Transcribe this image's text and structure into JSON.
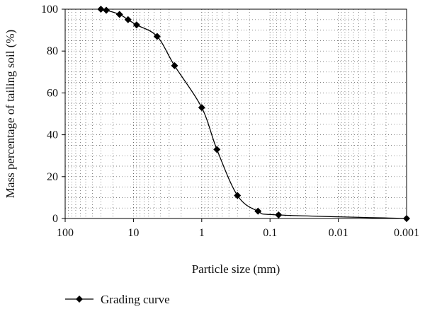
{
  "chart_data": {
    "type": "line",
    "title": "",
    "xlabel": "Particle size (mm)",
    "ylabel": "Mass percentage of tailing soil (%)",
    "x_scale": "log",
    "x_reversed": true,
    "xlim": [
      100,
      0.001
    ],
    "ylim": [
      0,
      100
    ],
    "x_ticks": [
      100,
      10,
      1,
      0.1,
      0.01,
      0.001
    ],
    "x_tick_labels": [
      "100",
      "10",
      "1",
      "0.1",
      "0.01",
      "0.001"
    ],
    "y_ticks": [
      0,
      20,
      40,
      60,
      80,
      100
    ],
    "y_tick_labels": [
      "0",
      "20",
      "40",
      "60",
      "80",
      "100"
    ],
    "grid": "dotted",
    "legend_position": "bottom-left",
    "series": [
      {
        "name": "Grading curve",
        "marker": "diamond",
        "color": "#000000",
        "x": [
          30,
          25,
          16,
          12,
          9,
          4.5,
          2.5,
          1.0,
          0.6,
          0.3,
          0.15,
          0.075,
          0.001
        ],
        "y": [
          100,
          99.5,
          97.5,
          95,
          92.5,
          87,
          73,
          53,
          33,
          11,
          3.5,
          1.7,
          0
        ]
      }
    ]
  }
}
